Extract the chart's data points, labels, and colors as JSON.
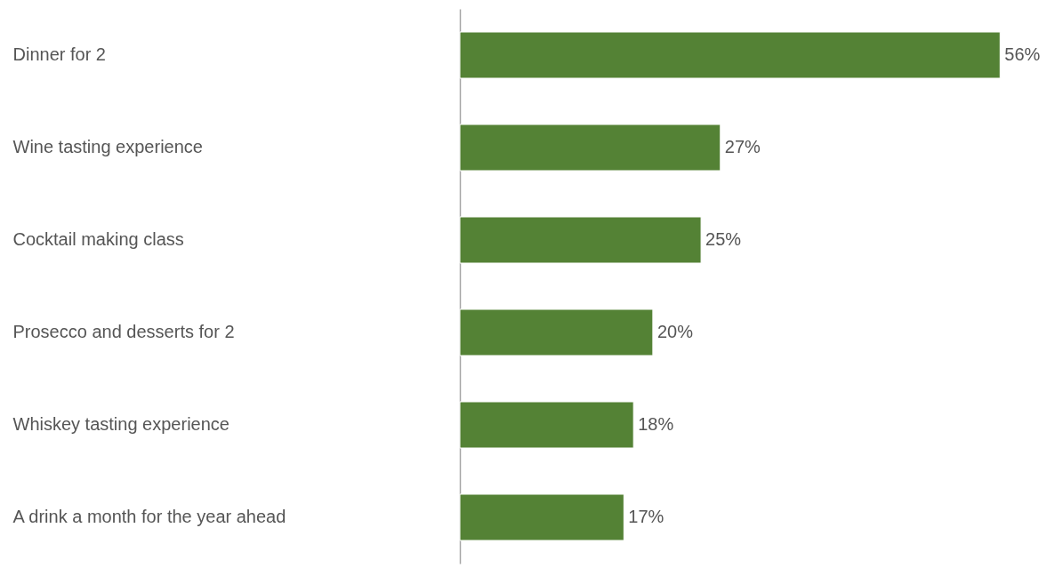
{
  "chart_data": {
    "type": "bar",
    "orientation": "horizontal",
    "categories": [
      "Dinner for 2",
      "Wine tasting experience",
      "Cocktail making class",
      "Prosecco and desserts for 2",
      "Whiskey tasting experience",
      "A drink a month for the year ahead"
    ],
    "values": [
      56,
      27,
      25,
      20,
      18,
      17
    ],
    "value_labels": [
      "56%",
      "27%",
      "25%",
      "20%",
      "18%",
      "17%"
    ],
    "color": "#548235"
  }
}
